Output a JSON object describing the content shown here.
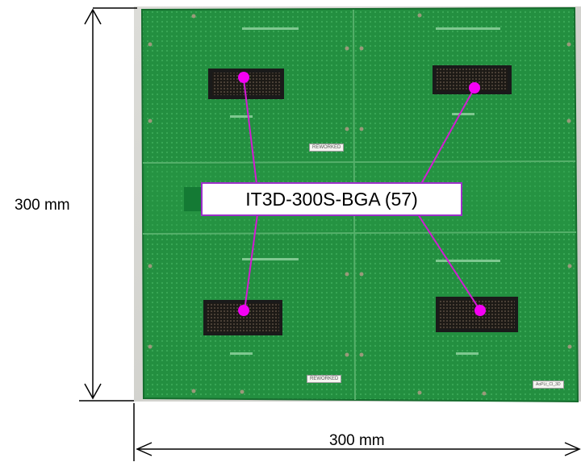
{
  "dimensions": {
    "height_label": "300 mm",
    "width_label": "300 mm"
  },
  "callout": {
    "label": "IT3D-300S-BGA (57)",
    "line_color": "#d31bd3",
    "dot_color": "#f400f4"
  },
  "board": {
    "color": "#1f8f3e",
    "stickers": [
      "REWORKED",
      "REWORKED"
    ],
    "small_label": "AoPLt_CI_3D"
  },
  "connectors": [
    {
      "name": "top-left-connector"
    },
    {
      "name": "top-right-connector"
    },
    {
      "name": "bottom-left-connector"
    },
    {
      "name": "bottom-right-connector"
    }
  ]
}
